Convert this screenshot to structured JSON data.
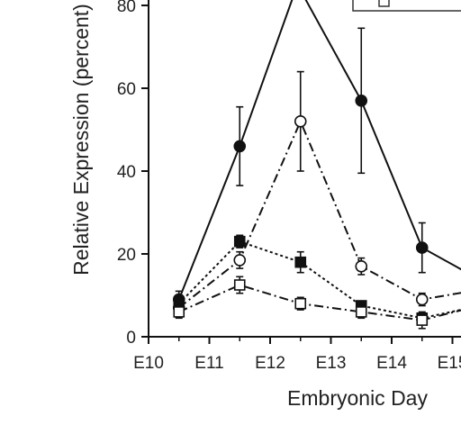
{
  "chart_data": {
    "type": "line",
    "xlabel": "Embryonic Day",
    "ylabel": "Relative Expression (percent)",
    "categories": [
      "E10",
      "E11",
      "E12",
      "E13",
      "E14",
      "E15"
    ],
    "yticks": [
      0,
      20,
      40,
      60,
      80
    ],
    "ylim": [
      0,
      80
    ],
    "grid": false,
    "legend": "top-right (clipped)",
    "series": [
      {
        "style": "solid",
        "marker": "filled-circle",
        "x": [
          10.5,
          11.5,
          13.5,
          14.5,
          15.3
        ],
        "y": [
          9,
          46,
          57,
          21.5,
          15
        ],
        "err": [
          2,
          9.5,
          17.5,
          6,
          0
        ],
        "peak_offscreen": {
          "x": 12.45,
          "y": 85
        }
      },
      {
        "style": "dashdot",
        "marker": "open-circle",
        "x": [
          10.5,
          11.5,
          12.5,
          13.5,
          14.5,
          15.3
        ],
        "y": [
          7,
          18.5,
          52,
          17,
          9,
          11
        ],
        "err": [
          1.5,
          2,
          12,
          2,
          1.5,
          0
        ]
      },
      {
        "style": "dotted",
        "marker": "filled-square",
        "x": [
          10.5,
          11.5,
          12.5,
          13.5,
          14.5,
          15.3
        ],
        "y": [
          8,
          23,
          18,
          7.5,
          4.5,
          7
        ],
        "err": [
          1.5,
          1.5,
          2.5,
          1,
          1,
          0
        ]
      },
      {
        "style": "dashdot",
        "marker": "open-square",
        "x": [
          10.5,
          11.5,
          12.5,
          13.5,
          14.5,
          15.3
        ],
        "y": [
          6,
          12.5,
          8,
          6,
          4,
          7
        ],
        "err": [
          1.5,
          2,
          1.5,
          1.5,
          2,
          0
        ]
      }
    ]
  }
}
